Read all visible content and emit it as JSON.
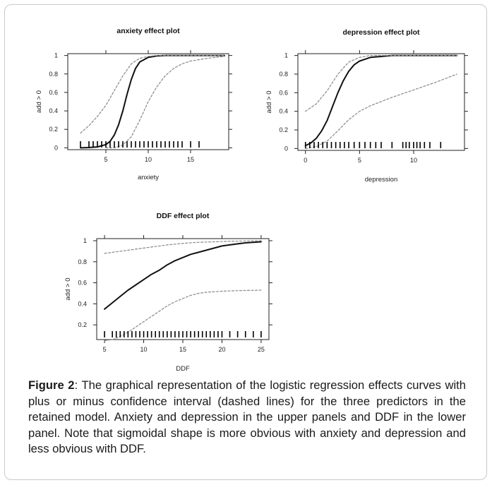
{
  "figure": {
    "caption_label": "Figure 2",
    "caption_text": ": The graphical representation of the logistic regression effects curves with plus or minus confidence interval (dashed lines) for the three predictors in the retained model. Anxiety and depression in the upper panels and DDF in the lower panel. Note that sigmoidal shape is more obvious with anxiety and depression and less obvious with DDF."
  },
  "colors": {
    "fit": "#111111",
    "ci": "#888888",
    "axis": "#222222",
    "rug": "#000000"
  },
  "chart_data": [
    {
      "type": "line",
      "title": "anxiety effect plot",
      "xlabel": "anxiety",
      "ylabel": "add > 0",
      "xlim": [
        0.5,
        19.5
      ],
      "ylim": [
        -0.02,
        1.02
      ],
      "xticks": [
        5,
        10,
        15
      ],
      "yticks": [
        0,
        0.2,
        0.4,
        0.6,
        0.8,
        1
      ],
      "ytick_labels": [
        "0",
        "0.2",
        "0.4",
        "0.6",
        "0.8",
        "1"
      ],
      "grid": false,
      "series": [
        {
          "role": "fit",
          "x": [
            2,
            3,
            4,
            5,
            5.5,
            6,
            6.5,
            7,
            7.5,
            8,
            8.5,
            9,
            10,
            11,
            12,
            13,
            19
          ],
          "y": [
            0.0,
            0.003,
            0.01,
            0.035,
            0.07,
            0.14,
            0.25,
            0.4,
            0.58,
            0.74,
            0.86,
            0.93,
            0.98,
            0.995,
            1.0,
            1.0,
            1.0
          ]
        },
        {
          "role": "ci_upper",
          "x": [
            2,
            3,
            4,
            5,
            6,
            7,
            8,
            9,
            10,
            11,
            12,
            19
          ],
          "y": [
            0.16,
            0.24,
            0.34,
            0.46,
            0.62,
            0.78,
            0.91,
            0.97,
            0.99,
            1.0,
            1.0,
            1.0
          ]
        },
        {
          "role": "ci_lower",
          "x": [
            5,
            6,
            7,
            8,
            9,
            10,
            11,
            12,
            13,
            14,
            15,
            17,
            19
          ],
          "y": [
            0.0,
            0.0,
            0.03,
            0.12,
            0.3,
            0.5,
            0.66,
            0.78,
            0.86,
            0.91,
            0.94,
            0.97,
            0.99
          ]
        }
      ],
      "rug": [
        2,
        3,
        3.5,
        4,
        4.5,
        5,
        5.5,
        6,
        6.5,
        7,
        7.5,
        8,
        8.5,
        9,
        9.5,
        10,
        10.5,
        11,
        11.5,
        12,
        12.5,
        13,
        13.5,
        14,
        15,
        16
      ]
    },
    {
      "type": "line",
      "title": "depression effect plot",
      "xlabel": "depression",
      "ylabel": "add > 0",
      "xlim": [
        -0.7,
        14.7
      ],
      "ylim": [
        -0.02,
        1.02
      ],
      "xticks": [
        0,
        5,
        10
      ],
      "yticks": [
        0,
        0.2,
        0.4,
        0.6,
        0.8,
        1
      ],
      "ytick_labels": [
        "0",
        "0.2",
        "0.4",
        "0.6",
        "0.8",
        "1"
      ],
      "grid": false,
      "series": [
        {
          "role": "fit",
          "x": [
            0,
            0.5,
            1,
            1.5,
            2,
            2.5,
            3,
            3.5,
            4,
            4.5,
            5,
            6,
            7,
            8,
            9,
            14
          ],
          "y": [
            0.03,
            0.06,
            0.11,
            0.19,
            0.3,
            0.45,
            0.6,
            0.73,
            0.83,
            0.9,
            0.94,
            0.98,
            0.99,
            1.0,
            1.0,
            1.0
          ]
        },
        {
          "role": "ci_upper",
          "x": [
            0,
            1,
            2,
            3,
            4,
            5,
            6,
            7,
            14
          ],
          "y": [
            0.4,
            0.48,
            0.62,
            0.8,
            0.93,
            0.98,
            1.0,
            1.0,
            1.0
          ]
        },
        {
          "role": "ci_lower",
          "x": [
            0,
            1,
            2,
            3,
            4,
            5,
            6,
            8,
            10,
            12,
            14
          ],
          "y": [
            0.0,
            0.02,
            0.08,
            0.19,
            0.31,
            0.4,
            0.46,
            0.55,
            0.63,
            0.71,
            0.8
          ]
        }
      ],
      "rug": [
        0,
        0.4,
        0.8,
        1.2,
        1.6,
        2,
        2.4,
        2.8,
        3.2,
        3.6,
        4,
        4.5,
        5,
        5.5,
        6,
        6.5,
        7,
        8,
        9,
        9.3,
        9.6,
        10,
        10.3,
        10.6,
        11,
        11.5,
        12.5
      ]
    },
    {
      "type": "line",
      "title": "DDF effect plot",
      "xlabel": "DDF",
      "ylabel": "add > 0",
      "xlim": [
        4,
        26
      ],
      "ylim": [
        0.06,
        1.02
      ],
      "xticks": [
        5,
        10,
        15,
        20,
        25
      ],
      "yticks": [
        0.2,
        0.4,
        0.6,
        0.8,
        1
      ],
      "ytick_labels": [
        "0.2",
        "0.4",
        "0.6",
        "0.8",
        "1"
      ],
      "grid": false,
      "series": [
        {
          "role": "fit",
          "x": [
            5,
            6,
            7,
            8,
            9,
            10,
            11,
            12,
            13,
            14,
            15,
            16,
            17,
            18,
            19,
            20,
            21,
            22,
            23,
            24,
            25
          ],
          "y": [
            0.35,
            0.41,
            0.47,
            0.53,
            0.58,
            0.63,
            0.68,
            0.72,
            0.77,
            0.81,
            0.84,
            0.87,
            0.89,
            0.91,
            0.93,
            0.95,
            0.96,
            0.97,
            0.98,
            0.985,
            0.99
          ]
        },
        {
          "role": "ci_upper",
          "x": [
            5,
            7,
            9,
            11,
            13,
            15,
            17,
            19,
            21,
            23,
            25
          ],
          "y": [
            0.88,
            0.9,
            0.92,
            0.94,
            0.96,
            0.975,
            0.985,
            0.99,
            0.995,
            0.997,
            1.0
          ]
        },
        {
          "role": "ci_lower",
          "x": [
            5,
            6,
            7,
            8,
            9,
            10,
            11,
            12,
            13,
            14,
            15,
            16,
            17,
            18,
            20,
            22,
            25
          ],
          "y": [
            0.05,
            0.06,
            0.09,
            0.13,
            0.18,
            0.23,
            0.28,
            0.33,
            0.38,
            0.42,
            0.45,
            0.48,
            0.5,
            0.51,
            0.52,
            0.525,
            0.53
          ]
        }
      ],
      "rug": [
        5,
        6,
        6.5,
        7,
        7.5,
        8,
        8.5,
        9,
        9.5,
        10,
        10.5,
        11,
        11.5,
        12,
        12.5,
        13,
        13.5,
        14,
        14.5,
        15,
        15.5,
        16,
        16.5,
        17,
        17.5,
        18,
        18.5,
        19,
        19.5,
        20,
        21,
        22,
        23,
        24,
        25
      ]
    }
  ]
}
